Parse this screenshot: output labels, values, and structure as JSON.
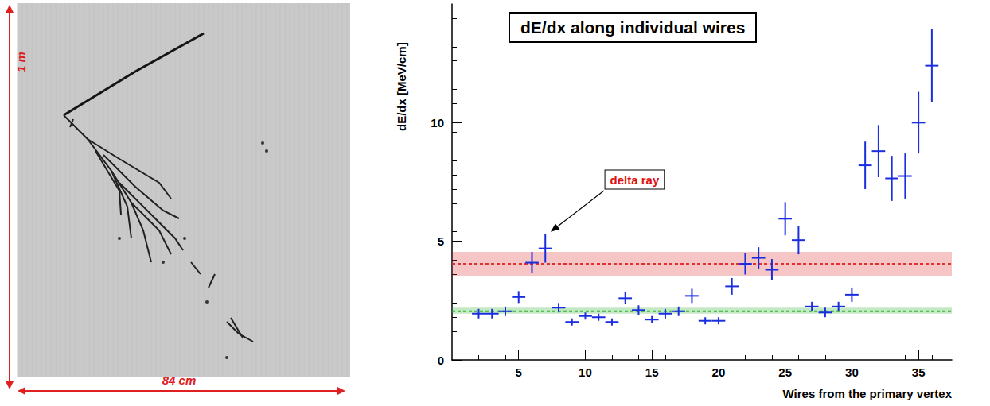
{
  "photo": {
    "height_label": "1 m",
    "width_label": "84 cm"
  },
  "chart_data": {
    "type": "scatter",
    "title": "dE/dx along individual wires",
    "x_label": "Wires from the primary vertex",
    "y_label": "dE/dx [MeV/cm]",
    "x": [
      2,
      3,
      4,
      5,
      6,
      7,
      8,
      9,
      10,
      11,
      12,
      13,
      14,
      15,
      16,
      17,
      18,
      19,
      20,
      21,
      22,
      23,
      24,
      25,
      26,
      27,
      28,
      29,
      30,
      31,
      32,
      33,
      34,
      35,
      36
    ],
    "values": [
      1.95,
      1.95,
      2.05,
      2.65,
      4.1,
      4.7,
      2.2,
      1.6,
      1.85,
      1.8,
      1.6,
      2.6,
      2.1,
      1.7,
      1.95,
      2.05,
      2.7,
      1.65,
      1.65,
      3.1,
      4.05,
      4.3,
      3.8,
      5.95,
      5.05,
      2.25,
      2.0,
      2.25,
      2.75,
      8.2,
      8.8,
      7.65,
      7.75,
      10.0,
      12.4
    ],
    "y_errors": [
      0.2,
      0.2,
      0.2,
      0.25,
      0.45,
      0.6,
      0.2,
      0.15,
      0.15,
      0.15,
      0.15,
      0.25,
      0.2,
      0.15,
      0.2,
      0.2,
      0.3,
      0.15,
      0.15,
      0.35,
      0.45,
      0.45,
      0.45,
      0.7,
      0.6,
      0.2,
      0.2,
      0.2,
      0.3,
      1.0,
      1.1,
      0.95,
      0.95,
      1.3,
      1.55
    ],
    "x_errors": [
      0.5,
      0.5,
      0.5,
      0.5,
      0.5,
      0.5,
      0.5,
      0.5,
      0.5,
      0.5,
      0.5,
      0.5,
      0.5,
      0.5,
      0.5,
      0.5,
      0.5,
      0.5,
      0.5,
      0.5,
      0.5,
      0.5,
      0.5,
      0.5,
      0.5,
      0.5,
      0.5,
      0.5,
      0.5,
      0.5,
      0.5,
      0.5,
      0.5,
      0.5,
      0.5
    ],
    "color": "#1a2ee0",
    "marker": "cross",
    "xlim": [
      0,
      37.5
    ],
    "xticks": [
      5,
      10,
      15,
      20,
      25,
      30,
      35
    ],
    "ylim": [
      0,
      15
    ],
    "yticks": [
      0,
      5,
      10
    ],
    "grid": false,
    "bands": [
      {
        "center": 4.05,
        "low": 3.55,
        "high": 4.55,
        "color": "#e03030"
      },
      {
        "center": 2.05,
        "low": 1.95,
        "high": 2.2,
        "color": "#30b030"
      }
    ],
    "annotations": [
      {
        "text": "delta ray",
        "x": 13.7,
        "y": 7.6,
        "arrow_x": 7.4,
        "arrow_y": 5.4,
        "color": "#e01010"
      }
    ]
  }
}
